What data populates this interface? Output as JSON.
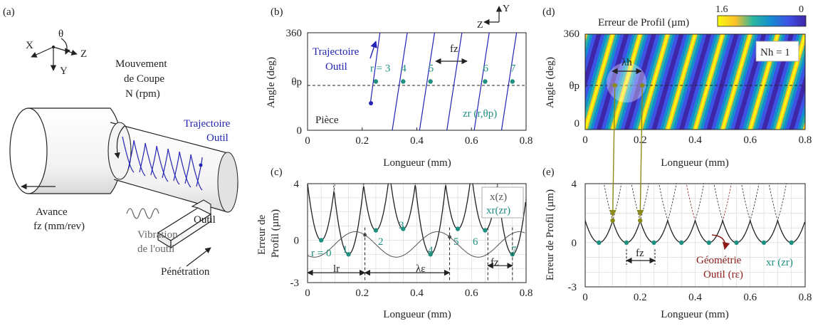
{
  "panels": {
    "a": {
      "tag": "(a)",
      "axes": {
        "x": "X",
        "y": "Y",
        "z": "Z",
        "theta": "θ"
      },
      "cut_motion": "Mouvement\nde Coupe\nN (rpm)",
      "tool_path": "Trajectoire\nOutil",
      "feed": "Avance\nfz (mm/rev)",
      "vibration": "Vibration\nde l'outil",
      "tool": "Outil",
      "penetration": "Pénétration"
    },
    "b": {
      "tag": "(b)",
      "ylabel": "Angle (deg)",
      "xlabel": "Longueur (mm)",
      "theta_p": "θp",
      "tool_path": "Trajectoire\nOutil",
      "workpiece": "Pièce",
      "fz": "fz",
      "zr": "zr (r,θp)",
      "r_labels": [
        "r = 3",
        "4",
        "5",
        "6",
        "7"
      ],
      "axes": {
        "z": "Z",
        "y": "Y"
      }
    },
    "c": {
      "tag": "(c)",
      "ylabel": "Erreur de\nProfil (µm)",
      "xlabel": "Longueur (mm)",
      "legend": [
        "x(z)",
        "xr(zr)"
      ],
      "r_labels": [
        "r = 0",
        "1",
        "2",
        "3",
        "4",
        "5",
        "6",
        "7"
      ],
      "lr": "lr",
      "lambda_e": "λε",
      "fz": "fz"
    },
    "d": {
      "tag": "(d)",
      "colorbar_title": "Erreur de Profil (µm)",
      "colorbar_min": "1.6",
      "colorbar_max": "0",
      "ylabel": "Angle (deg)",
      "xlabel": "Longueur (mm)",
      "theta_p": "θp",
      "nh": "Nh = 1",
      "lambda_h": "λh"
    },
    "e": {
      "tag": "(e)",
      "ylabel": "Erreur de Profil (µm)",
      "xlabel": "Longueur (mm)",
      "fz": "fz",
      "tool_geometry": "Géométrie\nOutil (rε)",
      "xr": "xr (zr)"
    }
  },
  "chart_data": [
    {
      "panel": "b",
      "type": "line",
      "x_range": [
        0,
        0.8
      ],
      "y_range": [
        0,
        360
      ],
      "x_ticks": [
        "0",
        "0.2",
        "0.4",
        "0.6",
        "0.8"
      ],
      "y_ticks": [
        "0",
        "θp",
        "360"
      ],
      "theta_p_deg": 180,
      "turn_starts_mm": [
        0.23,
        0.33,
        0.43,
        0.53,
        0.63,
        0.73
      ],
      "feed_mm_per_rev": 0.1,
      "marker_points": [
        {
          "r": 3,
          "z": 0.25
        },
        {
          "r": 4,
          "z": 0.35
        },
        {
          "r": 5,
          "z": 0.45
        },
        {
          "r": 6,
          "z": 0.65
        },
        {
          "r": 7,
          "z": 0.75
        }
      ],
      "colors": {
        "path": "#2323b4",
        "marker": "#1f8f80"
      }
    },
    {
      "panel": "c",
      "type": "line",
      "x_range": [
        0,
        0.8
      ],
      "y_range": [
        -3,
        4
      ],
      "x_ticks": [
        "0",
        "0.2",
        "0.4",
        "0.6",
        "0.8"
      ],
      "y_ticks": [
        "-3",
        "0",
        "4"
      ],
      "centers_mm": [
        0.05,
        0.15,
        0.25,
        0.35,
        0.45,
        0.55,
        0.65,
        0.75
      ],
      "minima_um": [
        0,
        -1,
        0.7,
        0.8,
        -1,
        0.8,
        0.7,
        -1
      ],
      "parabola_k": 1600,
      "dimension_marks_mm": [
        0.21,
        0.52,
        0.66,
        0.75
      ],
      "colors": {
        "curve": "#555555",
        "marker": "#1f8f80"
      }
    },
    {
      "panel": "d",
      "type": "heatmap",
      "x_range": [
        0,
        0.8
      ],
      "y_range": [
        0,
        360
      ],
      "x_ticks": [
        "0",
        "0.2",
        "0.4",
        "0.6",
        "0.8"
      ],
      "y_ticks": [
        "0",
        "θp",
        "360"
      ],
      "stripe_spacing_mm": 0.1,
      "stripe_slope_mm_per_turn": 0.1,
      "color_range_um": [
        0,
        1.6
      ]
    },
    {
      "panel": "e",
      "type": "line",
      "x_range": [
        0,
        0.8
      ],
      "y_range": [
        -3,
        4
      ],
      "x_ticks": [
        "0",
        "0.2",
        "0.4",
        "0.6",
        "0.8"
      ],
      "y_ticks": [
        "-3",
        "0",
        "4"
      ],
      "centers_mm": [
        0.05,
        0.15,
        0.25,
        0.35,
        0.45,
        0.55,
        0.65,
        0.75
      ],
      "minimum_um": 0,
      "parabola_k": 600,
      "highlight_mm": [
        0.1,
        0.2
      ],
      "colors": {
        "curve": "#555555",
        "marker": "#1f8f80",
        "arrow": "#8a8a1a",
        "geometry": "#8b1a1a"
      }
    }
  ]
}
